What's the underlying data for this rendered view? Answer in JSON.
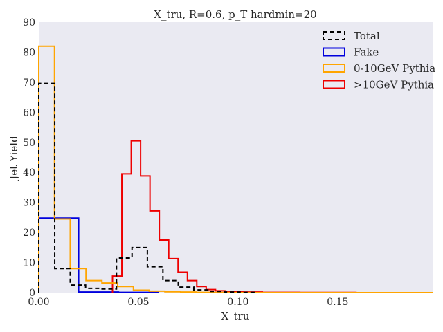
{
  "chart_data": {
    "type": "line",
    "title": "X_tru, R=0.6, p_T hardmin=20",
    "xlabel": "X_tru",
    "ylabel": "Jet Yield",
    "xlim": [
      0.0,
      0.198
    ],
    "ylim": [
      0,
      90
    ],
    "xticks": [
      0.0,
      0.05,
      0.1,
      0.15
    ],
    "xtick_labels": [
      "0.00",
      "0.05",
      "0.10",
      "0.15"
    ],
    "yticks": [
      0,
      10,
      20,
      30,
      40,
      50,
      60,
      70,
      80,
      90
    ],
    "ytick_labels": [
      "0",
      "10",
      "20",
      "30",
      "40",
      "50",
      "60",
      "70",
      "80",
      "90"
    ],
    "grid": false,
    "background": "#eaeaf2",
    "legend_position": "top-right",
    "series": [
      {
        "name": "Total",
        "color": "#000000",
        "dashed": true,
        "edges": [
          0.0,
          0.008,
          0.0158,
          0.0235,
          0.0313,
          0.039,
          0.0468,
          0.0545,
          0.0623,
          0.07,
          0.0778,
          0.0855,
          0.0933,
          0.101,
          0.108
        ],
        "values": [
          69.6,
          8.0,
          2.5,
          1.4,
          1.2,
          11.5,
          15.0,
          8.6,
          4.0,
          1.8,
          0.9,
          0.4,
          0.2,
          0.1
        ]
      },
      {
        "name": "Fake",
        "color": "#0000dd",
        "dashed": false,
        "edges": [
          0.0,
          0.02,
          0.04,
          0.06
        ],
        "values": [
          24.8,
          0.2,
          0.1
        ]
      },
      {
        "name": "0-10GeV Pythia",
        "color": "#ffa500",
        "dashed": false,
        "edges": [
          0.0,
          0.0079,
          0.0158,
          0.0237,
          0.0317,
          0.0396,
          0.0475,
          0.0554,
          0.0633,
          0.0712,
          0.0792,
          0.0871,
          0.095,
          0.198
        ],
        "values": [
          82.0,
          24.5,
          8.0,
          4.0,
          3.2,
          2.0,
          0.8,
          0.5,
          0.3,
          0.2,
          0.1,
          0.05,
          0.0
        ]
      },
      {
        "name": ">10GeV Pythia",
        "color": "#ee0000",
        "dashed": false,
        "edges": [
          0.037,
          0.0417,
          0.0464,
          0.0511,
          0.0558,
          0.0605,
          0.0652,
          0.0699,
          0.0746,
          0.0793,
          0.084,
          0.0887,
          0.0934,
          0.0981,
          0.1028,
          0.1075,
          0.1122,
          0.1169,
          0.1216,
          0.1263,
          0.131,
          0.1357,
          0.1404,
          0.1451,
          0.1498,
          0.1545,
          0.1592
        ],
        "values": [
          5.5,
          39.5,
          50.5,
          38.8,
          27.2,
          17.5,
          11.3,
          6.8,
          4.0,
          2.0,
          1.0,
          0.6,
          0.4,
          0.3,
          0.2,
          0.2,
          0.1,
          0.1,
          0.1,
          0.1,
          0.05,
          0.05,
          0.05,
          0.05,
          0.05,
          0.05
        ]
      }
    ]
  }
}
